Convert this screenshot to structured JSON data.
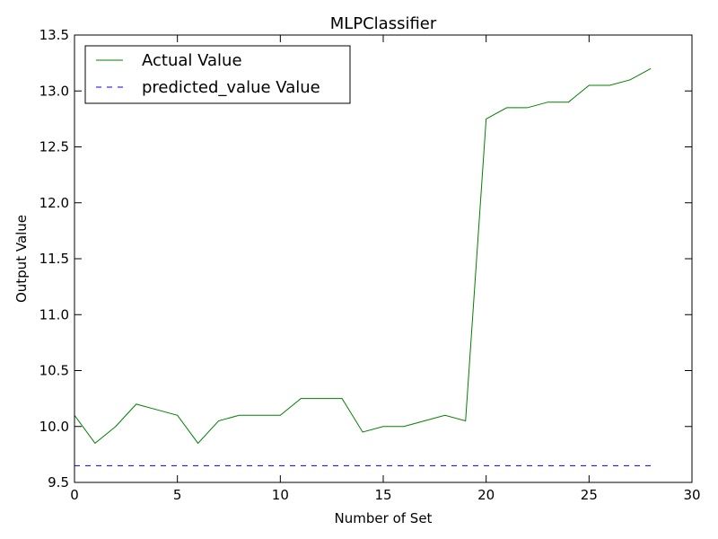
{
  "chart_data": {
    "type": "line",
    "title": "MLPClassifier",
    "xlabel": "Number of Set",
    "ylabel": "Output Value",
    "xlim": [
      0,
      30
    ],
    "ylim": [
      9.5,
      13.5
    ],
    "xticks": [
      0,
      5,
      10,
      15,
      20,
      25,
      30
    ],
    "xtick_labels": [
      "0",
      "5",
      "10",
      "15",
      "20",
      "25",
      "30"
    ],
    "yticks": [
      9.5,
      10.0,
      10.5,
      11.0,
      11.5,
      12.0,
      12.5,
      13.0,
      13.5
    ],
    "ytick_labels": [
      "9.5",
      "10.0",
      "10.5",
      "11.0",
      "11.5",
      "12.0",
      "12.5",
      "13.0",
      "13.5"
    ],
    "grid": false,
    "legend_position": "top-left",
    "series": [
      {
        "name": "Actual Value",
        "color": "#008000",
        "line_style": "solid",
        "x": [
          0,
          1,
          2,
          3,
          4,
          5,
          6,
          7,
          8,
          9,
          10,
          11,
          12,
          13,
          14,
          15,
          16,
          17,
          18,
          19,
          20,
          21,
          22,
          23,
          24,
          25,
          26,
          27,
          28
        ],
        "values": [
          10.1,
          9.85,
          10.0,
          10.2,
          10.15,
          10.1,
          9.85,
          10.05,
          10.1,
          10.1,
          10.1,
          10.25,
          10.25,
          10.25,
          9.95,
          10.0,
          10.0,
          10.05,
          10.1,
          10.05,
          12.75,
          12.85,
          12.85,
          12.9,
          12.9,
          13.05,
          13.05,
          13.1,
          13.2
        ]
      },
      {
        "name": "predicted_value Value",
        "color": "#0000ff",
        "line_style": "dashed",
        "x": [
          0,
          1,
          2,
          3,
          4,
          5,
          6,
          7,
          8,
          9,
          10,
          11,
          12,
          13,
          14,
          15,
          16,
          17,
          18,
          19,
          20,
          21,
          22,
          23,
          24,
          25,
          26,
          27,
          28
        ],
        "values": [
          9.65,
          9.65,
          9.65,
          9.65,
          9.65,
          9.65,
          9.65,
          9.65,
          9.65,
          9.65,
          9.65,
          9.65,
          9.65,
          9.65,
          9.65,
          9.65,
          9.65,
          9.65,
          9.65,
          9.65,
          9.65,
          9.65,
          9.65,
          9.65,
          9.65,
          9.65,
          9.65,
          9.65,
          9.65
        ]
      }
    ]
  }
}
